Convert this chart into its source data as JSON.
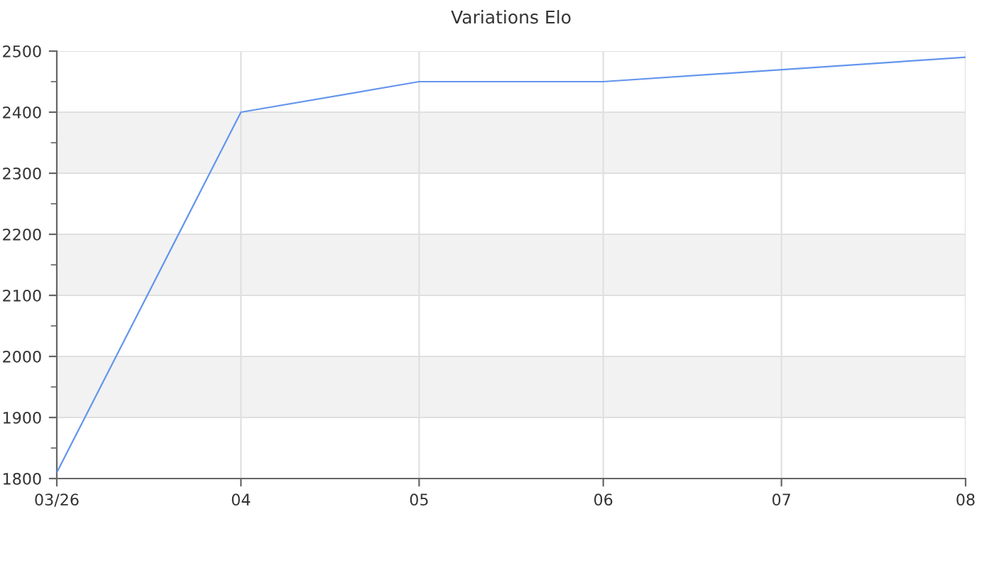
{
  "chart_data": {
    "type": "line",
    "title": "Variations Elo",
    "x": [
      "2026-03",
      "2026-04",
      "2026-05",
      "2026-06",
      "2026-08"
    ],
    "series": [
      {
        "color": "#6495ed",
        "values": [
          1810,
          2400,
          2450,
          2450,
          2490
        ]
      }
    ],
    "xlim": [
      "2026-03",
      "2026-08"
    ],
    "xticks": [
      {
        "value": "2026-03",
        "label": "03/26"
      },
      {
        "value": "2026-04",
        "label": "04"
      },
      {
        "value": "2026-05",
        "label": "05"
      },
      {
        "value": "2026-06",
        "label": "06"
      },
      {
        "value": "2026-07",
        "label": "07"
      },
      {
        "value": "2026-08",
        "label": "08"
      }
    ],
    "ylim": [
      1800,
      2500
    ],
    "yticks": [
      1800,
      1900,
      2000,
      2100,
      2200,
      2300,
      2400,
      2500
    ],
    "bands": [
      {
        "axis": "y",
        "from": 1900,
        "to": 2000,
        "color": "#f2f2f2"
      },
      {
        "axis": "y",
        "from": 2100,
        "to": 2200,
        "color": "#f2f2f2"
      },
      {
        "axis": "y",
        "from": 2300,
        "to": 2400,
        "color": "#f2f2f2"
      }
    ],
    "grid": true,
    "legend": false,
    "marker": "none",
    "line_style": "solid"
  }
}
